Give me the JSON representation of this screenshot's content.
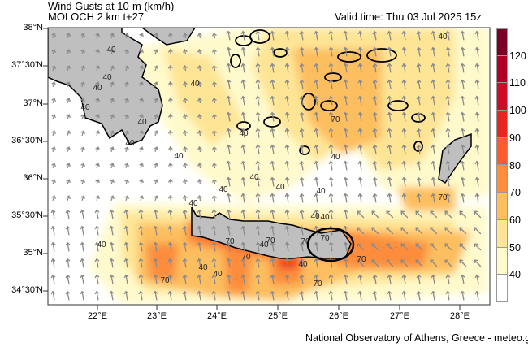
{
  "header": {
    "title": "Wind Gusts at 10-m (km/h)",
    "model": "MOLOCH 2 km t+27",
    "valid_time": "Valid time: Thu 03 Jul 2025 15z"
  },
  "axes": {
    "lat_labels": [
      "38°N",
      "37°30'N",
      "37°N",
      "36°30'N",
      "36°N",
      "35°30'N",
      "35°N",
      "34°30'N"
    ],
    "lon_labels": [
      "22°E",
      "23°E",
      "24°E",
      "25°E",
      "26°E",
      "27°E",
      "28°E"
    ]
  },
  "colorbar": {
    "labels": [
      "120",
      "110",
      "100",
      "90",
      "80",
      "70",
      "60",
      "50",
      "40"
    ],
    "colors": [
      "#7a0026",
      "#b10026",
      "#cf0c25",
      "#e6261f",
      "#fc5b2d",
      "#fd8d3c",
      "#fdbe5e",
      "#fee596",
      "#fffacc",
      "#ffffff"
    ]
  },
  "contours": {
    "low": "40",
    "high": "70"
  },
  "map_colors": {
    "land": "#bfbfbf",
    "arrow": "#8a8a8a",
    "coast": "#000000",
    "circle": "#000000"
  },
  "footer": {
    "credit": "National Observatory of Athens, Greece - meteo.gr"
  }
}
